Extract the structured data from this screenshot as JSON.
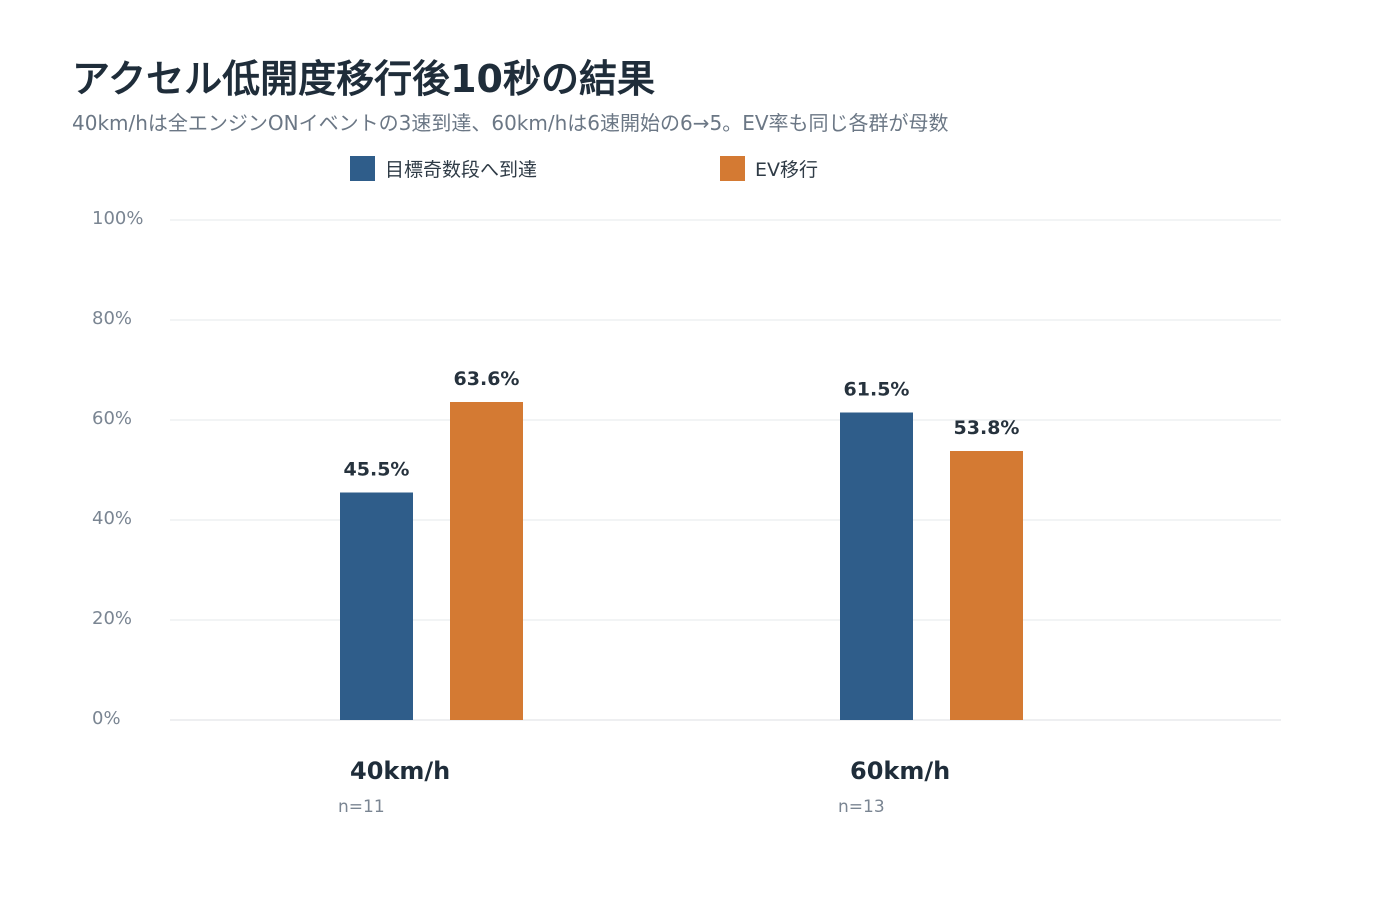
{
  "chart_data": {
    "type": "bar",
    "title": "アクセル低開度移行後10秒の結果",
    "subtitle": "40km/hは全エンジンONイベントの3速到達、60km/hは6速開始の6→5。EV率も同じ各群が母数",
    "categories": [
      "40km/h",
      "60km/h"
    ],
    "category_notes": [
      "n=11",
      "n=13"
    ],
    "series": [
      {
        "name": "目標奇数段へ到達",
        "color": "#2f5d8a",
        "values": [
          45.5,
          61.5
        ]
      },
      {
        "name": "EV移行",
        "color": "#d47a33",
        "values": [
          63.6,
          53.8
        ]
      }
    ],
    "value_labels": [
      [
        "45.5%",
        "61.5%"
      ],
      [
        "63.6%",
        "53.8%"
      ]
    ],
    "ylim": [
      0,
      100
    ],
    "yticks": [
      0,
      20,
      40,
      60,
      80,
      100
    ],
    "ytick_labels": [
      "0%",
      "20%",
      "40%",
      "60%",
      "80%",
      "100%"
    ],
    "legend_position": "top",
    "grid": true
  }
}
